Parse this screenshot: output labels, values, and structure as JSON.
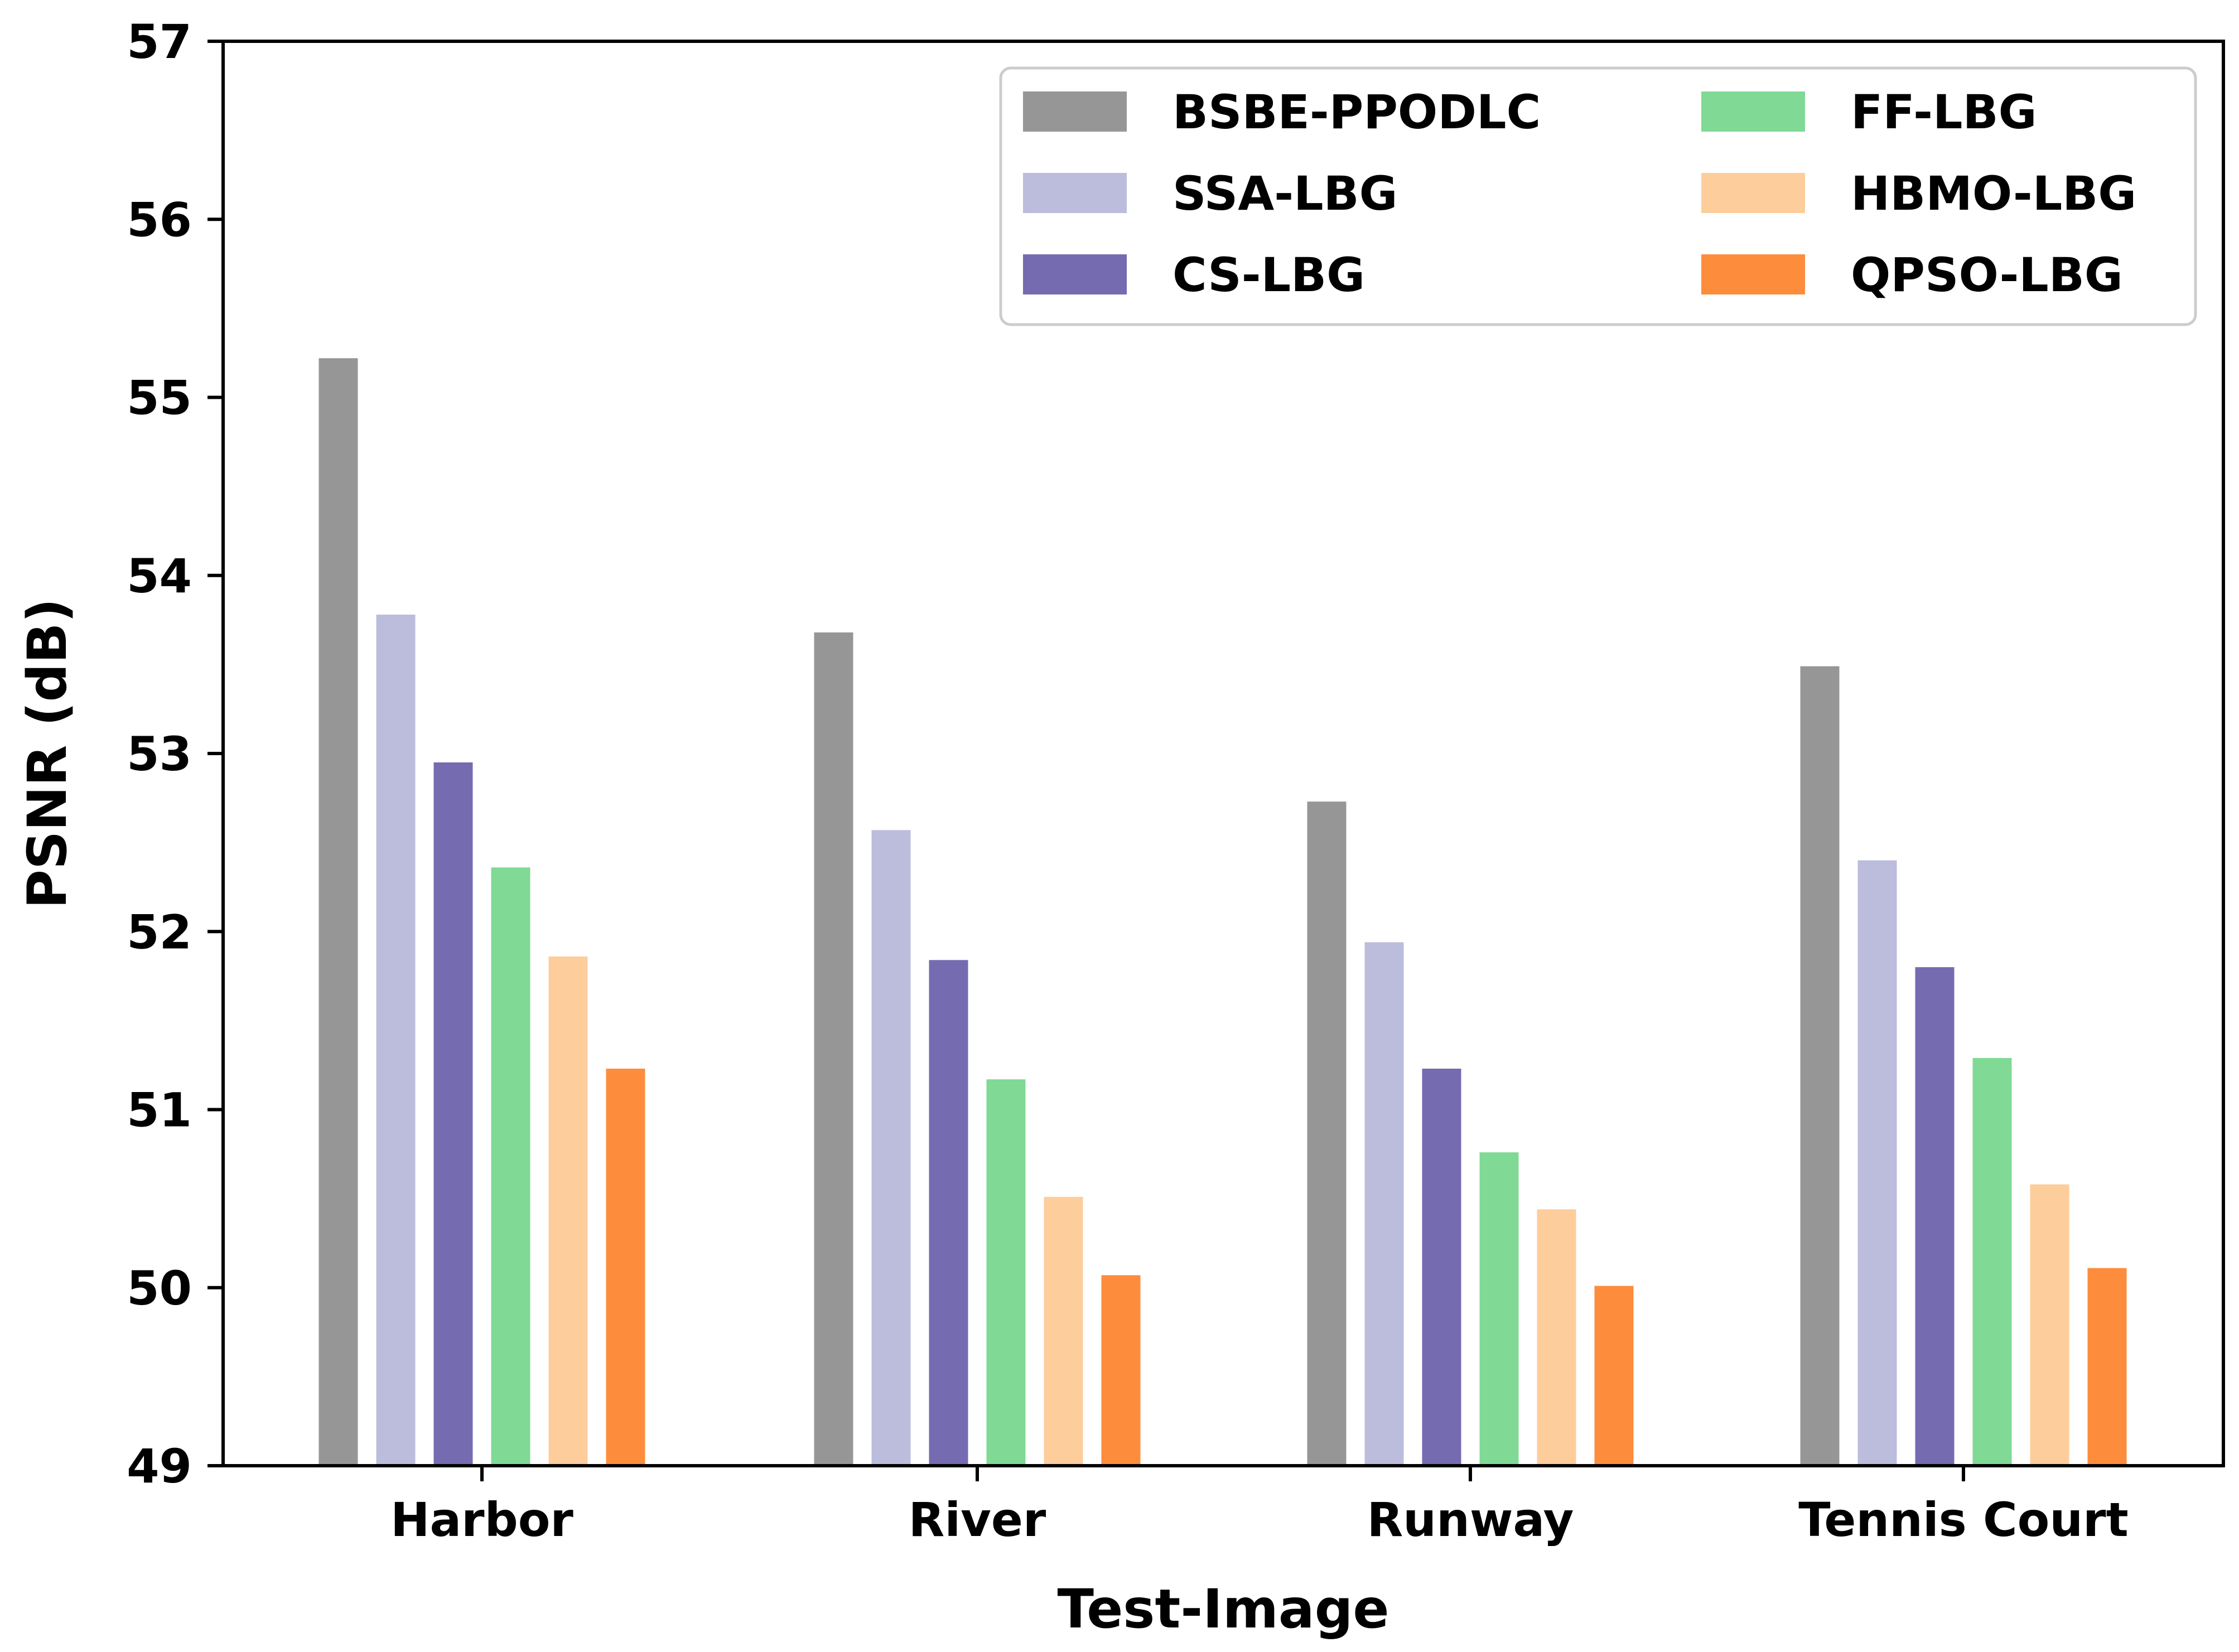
{
  "chart_data": {
    "type": "bar",
    "title": "",
    "xlabel": "Test-Image",
    "ylabel": "PSNR (dB)",
    "ylim": [
      49,
      57
    ],
    "yticks": [
      49,
      50,
      51,
      52,
      53,
      54,
      55,
      56,
      57
    ],
    "ytick_labels": [
      "49",
      "50",
      "51",
      "52",
      "53",
      "54",
      "55",
      "56",
      "57"
    ],
    "grid": false,
    "legend_position": "top-right",
    "categories": [
      "Harbor",
      "River",
      "Runway",
      "Tennis Court"
    ],
    "series": [
      {
        "name": "BSBE-PPODLC",
        "color": "#969696",
        "values": [
          55.22,
          53.68,
          52.73,
          53.49
        ]
      },
      {
        "name": "SSA-LBG",
        "color": "#bcbddc",
        "values": [
          53.78,
          52.57,
          51.94,
          52.4
        ]
      },
      {
        "name": "CS-LBG",
        "color": "#756bb1",
        "values": [
          52.95,
          51.84,
          51.23,
          51.8
        ]
      },
      {
        "name": "FF-LBG",
        "color": "#80d994",
        "values": [
          52.36,
          51.17,
          50.76,
          51.29
        ]
      },
      {
        "name": "HBMO-LBG",
        "color": "#fdcd9c",
        "values": [
          51.86,
          50.51,
          50.44,
          50.58
        ]
      },
      {
        "name": "QPSO-LBG",
        "color": "#fd8d3c",
        "values": [
          51.23,
          50.07,
          50.01,
          50.11
        ]
      }
    ]
  }
}
